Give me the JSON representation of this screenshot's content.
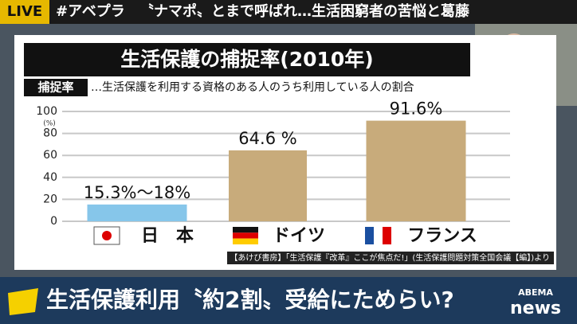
{
  "header": {
    "live": "LIVE",
    "hashtag": "#アベプラ",
    "headline": "〝ナマポ〟とまで呼ばれ…生活困窮者の苦悩と葛藤"
  },
  "chart_data": {
    "type": "bar",
    "title": "生活保護の捕捉率(2010年)",
    "subtitle_tag": "捕捉率",
    "subtitle": "…生活保護を利用する資格のある人のうち利用している人の割合",
    "y_unit": "(%)",
    "categories": [
      "日　本",
      "ドイツ",
      "フランス"
    ],
    "values": [
      15.3,
      64.6,
      91.6
    ],
    "value_labels": [
      "15.3%〜18%",
      "64.6 %",
      "91.6%"
    ],
    "colors": [
      "#86c6ea",
      "#c8ab7b",
      "#c8ab7b"
    ],
    "ylim": [
      0,
      100
    ],
    "yticks": [
      0,
      20,
      40,
      60,
      80,
      100
    ],
    "grid": true,
    "source": "【あけび書房】「生活保護『改革』ここが焦点だ!」(生活保護問題対策全国会議【編】)より"
  },
  "caption": "生活保護利用〝約2割〟受給にためらい?",
  "logo": {
    "brand": "ABEMA",
    "name": "news"
  }
}
